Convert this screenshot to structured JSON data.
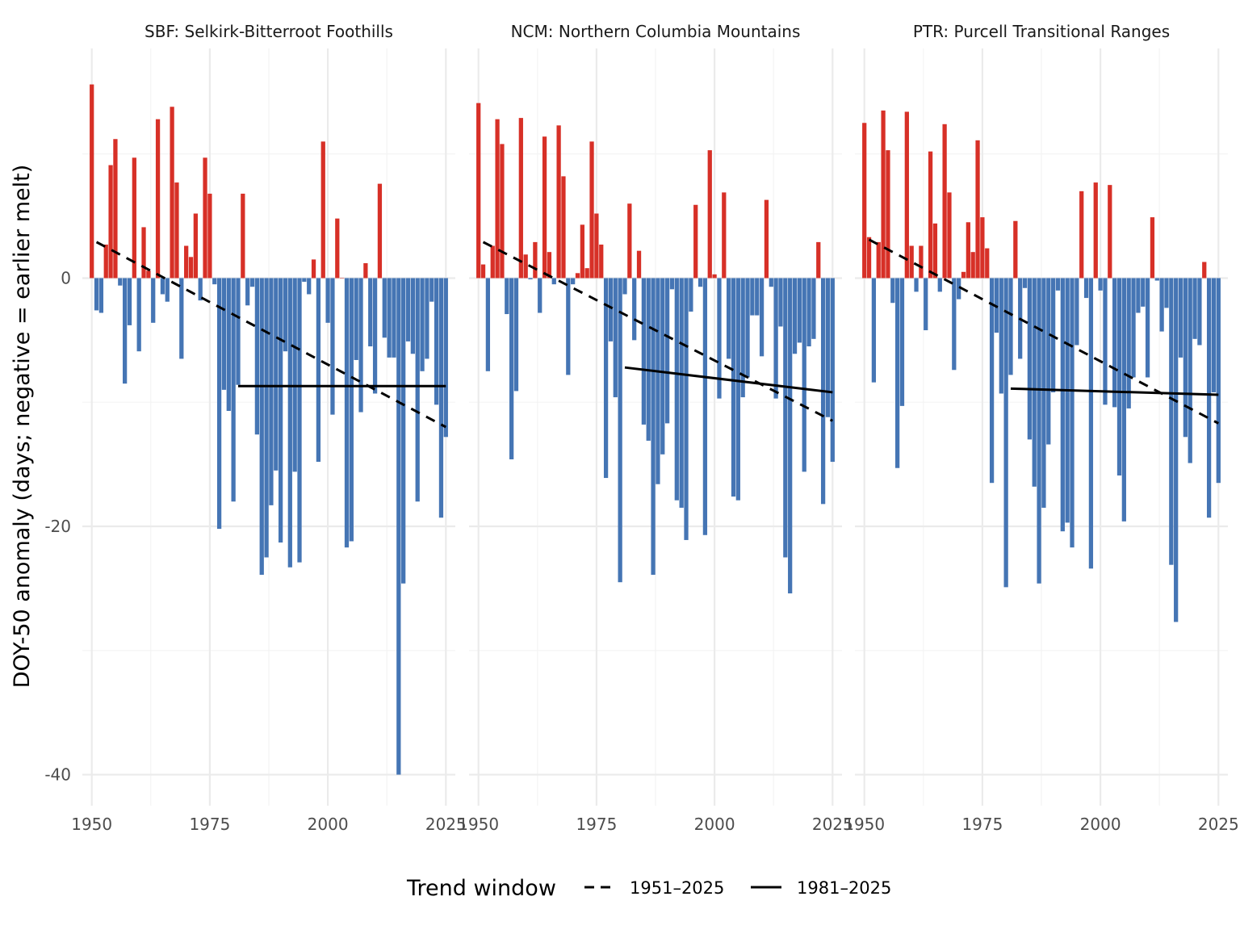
{
  "chart_data": {
    "type": "bar",
    "ylabel": "DOY-50 anomaly (days; negative = earlier melt)",
    "xlabel": "",
    "x_ticks": [
      1950,
      1975,
      2000,
      2025
    ],
    "y_ticks": [
      -40,
      -20,
      0
    ],
    "xlim": [
      1948,
      2027
    ],
    "ylim": [
      -42.5,
      18.5
    ],
    "grid": true,
    "colors": {
      "positive": "#d73027",
      "negative": "#4575b4",
      "trend": "#000000"
    },
    "legend": {
      "title": "Trend window",
      "placement": "bottom",
      "entries": [
        {
          "label": "1951–2025",
          "linetype": "dashed"
        },
        {
          "label": "1981–2025",
          "linetype": "solid"
        }
      ]
    },
    "panels": [
      {
        "title": "SBF: Selkirk-Bitterroot Foothills",
        "years": [
          1950,
          2025
        ],
        "values": [
          15.6,
          -2.6,
          -2.8,
          2.7,
          9.1,
          11.2,
          -0.6,
          -8.5,
          -3.8,
          9.7,
          -5.9,
          4.1,
          0.6,
          -3.6,
          12.8,
          -1.3,
          -1.9,
          13.8,
          7.7,
          -6.5,
          2.6,
          1.7,
          5.2,
          -1.8,
          9.7,
          6.8,
          -0.5,
          -20.2,
          -9.0,
          -10.7,
          -18.0,
          -8.6,
          6.8,
          -2.2,
          -0.7,
          -12.6,
          -23.9,
          -22.5,
          -18.3,
          -15.5,
          -21.3,
          -5.9,
          -23.3,
          -15.6,
          -22.9,
          -0.3,
          -1.3,
          1.5,
          -14.8,
          11.0,
          -3.6,
          -11.0,
          4.8,
          0.0,
          -21.7,
          -21.2,
          -6.6,
          -10.8,
          1.2,
          -5.5,
          -9.3,
          7.6,
          -4.8,
          -6.4,
          -6.4,
          -40.0,
          -24.6,
          -5.1,
          -6.1,
          -18.0,
          -7.5,
          -6.5,
          -1.9,
          -10.2,
          -19.3,
          -12.8
        ],
        "trend_1951_2025": {
          "start": [
            1951,
            2.9
          ],
          "end": [
            2025,
            -12.0
          ]
        },
        "trend_1981_2025": {
          "start": [
            1981,
            -8.7
          ],
          "end": [
            2025,
            -8.7
          ]
        }
      },
      {
        "title": "NCM: Northern Columbia Mountains",
        "years": [
          1950,
          2025
        ],
        "values": [
          14.1,
          1.1,
          -7.5,
          2.6,
          12.8,
          10.8,
          -2.9,
          -14.6,
          -9.1,
          12.9,
          1.9,
          -0.1,
          2.9,
          -2.8,
          11.4,
          2.1,
          -0.5,
          12.3,
          8.2,
          -7.8,
          -0.5,
          0.4,
          4.3,
          0.8,
          11.0,
          5.2,
          2.7,
          -16.1,
          -5.1,
          -9.6,
          -24.5,
          -1.3,
          6.0,
          -5.0,
          2.2,
          -11.8,
          -13.1,
          -23.9,
          -16.6,
          -14.2,
          -11.7,
          -0.9,
          -17.9,
          -18.5,
          -21.1,
          -2.7,
          5.9,
          -0.7,
          -20.7,
          10.3,
          0.3,
          -9.7,
          6.9,
          -6.5,
          -17.6,
          -17.9,
          -9.6,
          -8.0,
          -3.0,
          -3.0,
          -6.3,
          6.3,
          -0.7,
          -9.7,
          -3.9,
          -22.5,
          -25.4,
          -6.1,
          -5.2,
          -15.6,
          -5.5,
          -4.9,
          2.9,
          -18.2,
          -11.2,
          -14.8
        ],
        "trend_1951_2025": {
          "start": [
            1951,
            2.9
          ],
          "end": [
            2025,
            -11.5
          ]
        },
        "trend_1981_2025": {
          "start": [
            1981,
            -7.2
          ],
          "end": [
            2025,
            -9.2
          ]
        }
      },
      {
        "title": "PTR: Purcell Transitional Ranges",
        "years": [
          1950,
          2025
        ],
        "values": [
          12.5,
          3.3,
          -8.4,
          2.9,
          13.5,
          10.3,
          -2.0,
          -15.3,
          -10.3,
          13.4,
          2.6,
          -1.1,
          2.6,
          -4.2,
          10.2,
          4.4,
          -1.1,
          12.4,
          6.9,
          -7.4,
          -1.7,
          0.5,
          4.5,
          2.1,
          11.1,
          4.9,
          2.4,
          -16.5,
          -4.4,
          -9.3,
          -24.9,
          -7.8,
          4.6,
          -6.5,
          -0.8,
          -13.0,
          -16.8,
          -24.6,
          -18.5,
          -13.4,
          -9.2,
          -1.0,
          -20.4,
          -19.7,
          -21.7,
          -5.4,
          7.0,
          -1.6,
          -23.4,
          7.7,
          -1.0,
          -10.2,
          7.5,
          -10.4,
          -15.9,
          -19.6,
          -10.5,
          -8.0,
          -2.8,
          -2.3,
          -8.0,
          4.9,
          -0.2,
          -4.3,
          -2.4,
          -23.1,
          -27.7,
          -6.4,
          -12.8,
          -14.9,
          -4.9,
          -5.4,
          1.3,
          -19.3,
          -9.2,
          -16.5
        ],
        "trend_1951_2025": {
          "start": [
            1951,
            3.1
          ],
          "end": [
            2025,
            -11.7
          ]
        },
        "trend_1981_2025": {
          "start": [
            1981,
            -8.9
          ],
          "end": [
            2025,
            -9.4
          ]
        }
      }
    ]
  }
}
